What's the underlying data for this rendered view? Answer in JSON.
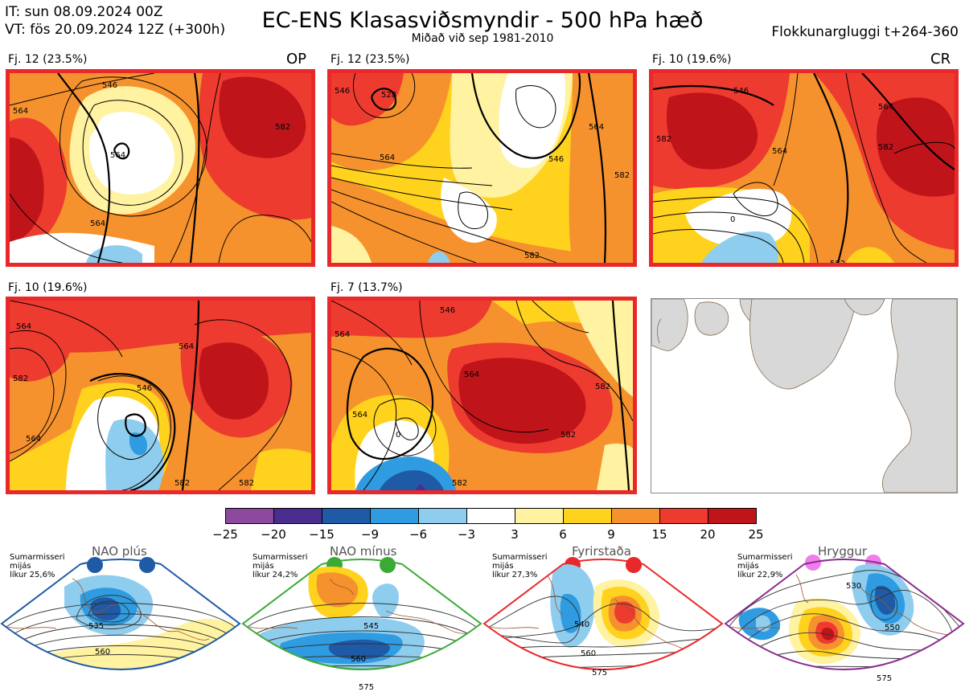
{
  "header": {
    "it_line": "IT: sun 08.09.2024 00Z",
    "vt_line": "VT: fös 20.09.2024 12Z  (+300h)",
    "title": "EC-ENS Klasasviðsmyndir - 500 hPa hæð",
    "subtitle": "Miðað við sep 1981-2010",
    "window": "Flokkunargluggi t+264-360"
  },
  "panels": [
    {
      "label": "Fj. 12 (23.5%)",
      "tag": "OP",
      "contours": [
        "546",
        "564",
        "564",
        "582",
        "564",
        "582"
      ]
    },
    {
      "label": "Fj. 12 (23.5%)",
      "tag": "",
      "contours": [
        "528",
        "546",
        "564",
        "564",
        "546",
        "582",
        "582"
      ]
    },
    {
      "label": "Fj. 10 (19.6%)",
      "tag": "CR",
      "contours": [
        "546",
        "564",
        "582",
        "564",
        "582",
        "582",
        "0"
      ]
    },
    {
      "label": "Fj. 10 (19.6%)",
      "tag": "",
      "contours": [
        "564",
        "564",
        "582",
        "546",
        "564",
        "582",
        "582"
      ]
    },
    {
      "label": "Fj. 7 (13.7%)",
      "tag": "",
      "contours": [
        "564",
        "546",
        "564",
        "564",
        "582",
        "582",
        "582",
        "0"
      ]
    }
  ],
  "colorbar": {
    "colors": [
      "#8c4a9e",
      "#4a2d8e",
      "#1f5aa6",
      "#2f9be0",
      "#8fcdef",
      "#ffffff",
      "#fff2a0",
      "#ffd21e",
      "#f6922e",
      "#ee3b2f",
      "#c0141b"
    ],
    "ticks": [
      "−25",
      "−20",
      "−15",
      "−9",
      "−6",
      "−3",
      "3",
      "6",
      "9",
      "15",
      "20",
      "25"
    ]
  },
  "regimes": [
    {
      "name": "NAO plús",
      "note1": "Sumarmisseri",
      "note2": "mijás",
      "note3": "líkur 25,6%",
      "color": "#1f5aa6",
      "contours": [
        "535",
        "560"
      ]
    },
    {
      "name": "NAO mínus",
      "note1": "Sumarmisseri",
      "note2": "mijás",
      "note3": "líkur 24,2%",
      "color": "#3aaa35",
      "contours": [
        "545",
        "560",
        "575"
      ]
    },
    {
      "name": "Fyrirstaða",
      "note1": "Sumarmisseri",
      "note2": "mijás",
      "note3": "líkur 27,3%",
      "color": "#e8282b",
      "contours": [
        "540",
        "560",
        "575"
      ]
    },
    {
      "name": "Hryggur",
      "note1": "Sumarmisseri",
      "note2": "mijás",
      "note3": "líkur 22,9%",
      "color": "#ee7ee9",
      "contours": [
        "530",
        "550",
        "575"
      ]
    }
  ]
}
